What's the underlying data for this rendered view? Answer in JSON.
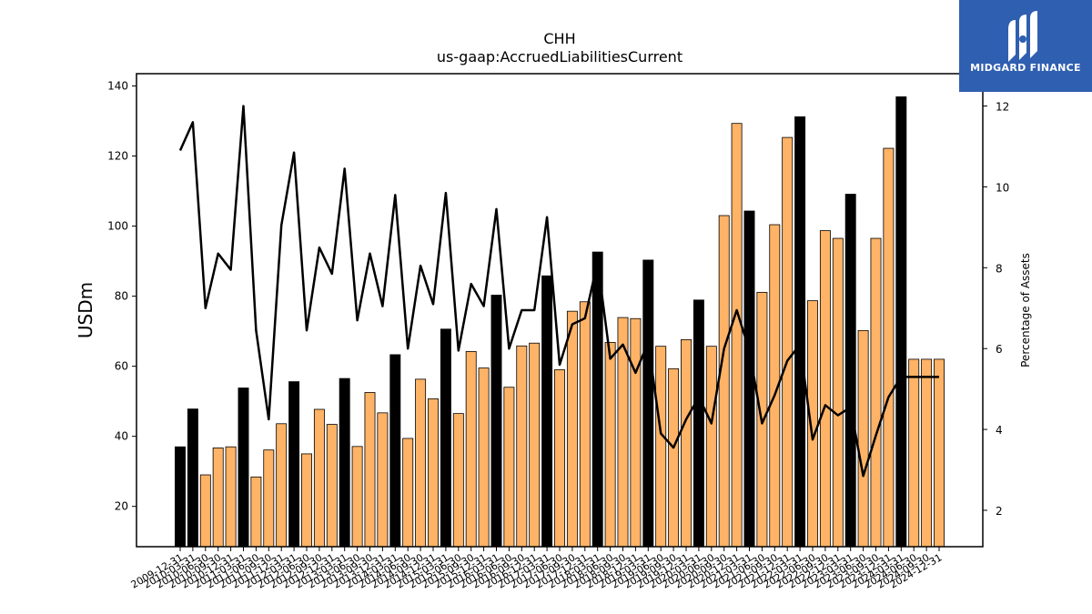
{
  "logo": {
    "text": "MIDGARD FINANCE",
    "icon": "midgard-logo-icon",
    "color": "#2f5fb0"
  },
  "chart_data": {
    "type": "bar",
    "title": "CHH",
    "subtitle": "us-gaap:AccruedLiabilitiesCurrent",
    "ylabel": "USDm",
    "y2label": "Percentage of Assets",
    "ylim": [
      8.5,
      143.5
    ],
    "y2lim": [
      1.1,
      12.8
    ],
    "yticks": [
      20,
      40,
      60,
      80,
      100,
      120,
      140
    ],
    "y2ticks": [
      2,
      4,
      6,
      8,
      10,
      12
    ],
    "colors": {
      "annual": "#000000",
      "quarterly": "#ffb366",
      "line": "#000000"
    },
    "categories": [
      "2009-12-31",
      "2010-03-31",
      "2010-06-30",
      "2010-09-30",
      "2010-12-31",
      "2011-03-31",
      "2011-06-30",
      "2011-09-30",
      "2011-12-31",
      "2012-03-31",
      "2012-06-30",
      "2012-09-30",
      "2012-12-31",
      "2013-03-31",
      "2013-06-30",
      "2013-09-30",
      "2013-12-31",
      "2014-03-31",
      "2014-06-30",
      "2014-09-30",
      "2014-12-31",
      "2015-03-31",
      "2015-06-30",
      "2015-09-30",
      "2015-12-31",
      "2016-03-31",
      "2016-06-30",
      "2016-09-30",
      "2016-12-31",
      "2017-03-31",
      "2017-06-30",
      "2017-09-30",
      "2017-12-31",
      "2018-03-31",
      "2018-06-30",
      "2018-09-30",
      "2018-12-31",
      "2019-03-31",
      "2019-06-30",
      "2019-09-30",
      "2019-12-31",
      "2020-03-31",
      "2020-06-30",
      "2020-09-30",
      "2020-12-31",
      "2021-03-31",
      "2021-06-30",
      "2021-09-30",
      "2021-12-31",
      "2022-03-31",
      "2022-06-30",
      "2022-09-30",
      "2022-12-31",
      "2023-03-31",
      "2023-06-30",
      "2023-09-30",
      "2023-12-31",
      "2024-03-31",
      "2024-06-30",
      "2024-09-30",
      "2024-12-31"
    ],
    "series": [
      {
        "type": "bar",
        "values": [
          37.0,
          47.8,
          29.0,
          36.7,
          37.0,
          53.8,
          28.4,
          36.1,
          43.6,
          55.6,
          35.0,
          47.7,
          43.4,
          56.5,
          37.1,
          52.5,
          46.7,
          63.3,
          39.4,
          56.3,
          50.7,
          70.6,
          46.5,
          64.2,
          59.5,
          80.3,
          54.0,
          65.8,
          66.6,
          85.8,
          59.0,
          75.7,
          78.4,
          92.6,
          66.8,
          73.9,
          73.6,
          90.3,
          65.7,
          59.3,
          67.6,
          78.9,
          65.7,
          103.0,
          129.3,
          104.3,
          81.1,
          100.4,
          125.3,
          131.2,
          78.7,
          98.7,
          96.5,
          109.1,
          70.2,
          96.5,
          122.2,
          136.9,
          62.0,
          62.0,
          62.0
        ],
        "annual": [
          true,
          true,
          false,
          false,
          false,
          true,
          false,
          false,
          false,
          true,
          false,
          false,
          false,
          true,
          false,
          false,
          false,
          true,
          false,
          false,
          false,
          true,
          false,
          false,
          false,
          true,
          false,
          false,
          false,
          true,
          false,
          false,
          false,
          true,
          false,
          false,
          false,
          true,
          false,
          false,
          false,
          true,
          false,
          false,
          false,
          true,
          false,
          false,
          false,
          true,
          false,
          false,
          false,
          true,
          false,
          false,
          false,
          true,
          false,
          false,
          false
        ]
      },
      {
        "type": "line",
        "axis": "right",
        "values": [
          10.9,
          11.6,
          7.0,
          8.35,
          7.95,
          12.0,
          6.45,
          4.25,
          9.05,
          10.85,
          6.45,
          8.5,
          7.85,
          10.45,
          6.7,
          8.35,
          7.05,
          9.8,
          6.0,
          8.05,
          7.1,
          9.85,
          5.95,
          7.6,
          7.05,
          9.45,
          6.0,
          6.95,
          6.95,
          9.25,
          5.6,
          6.6,
          6.75,
          8.15,
          5.75,
          6.1,
          5.4,
          6.15,
          3.9,
          3.55,
          4.25,
          4.8,
          4.15,
          6.0,
          6.95,
          5.95,
          4.15,
          4.85,
          5.7,
          6.1,
          3.75,
          4.6,
          4.35,
          4.55,
          2.85,
          3.85,
          4.8,
          5.3,
          5.3,
          5.3,
          5.3
        ]
      }
    ]
  }
}
